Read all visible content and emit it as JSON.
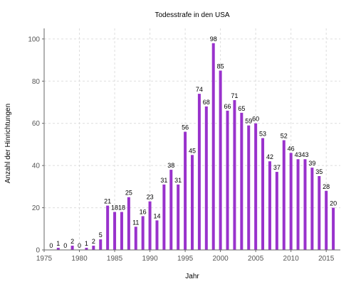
{
  "chart_data": {
    "type": "bar",
    "title": "Todesstrafe in den USA",
    "xlabel": "Jahr",
    "ylabel": "Anzahl der Hinrichtungen",
    "x": [
      1976,
      1977,
      1978,
      1979,
      1980,
      1981,
      1982,
      1983,
      1984,
      1985,
      1986,
      1987,
      1988,
      1989,
      1990,
      1991,
      1992,
      1993,
      1994,
      1995,
      1996,
      1997,
      1998,
      1999,
      2000,
      2001,
      2002,
      2003,
      2004,
      2005,
      2006,
      2007,
      2008,
      2009,
      2010,
      2011,
      2012,
      2013,
      2014,
      2015,
      2016
    ],
    "values": [
      0,
      1,
      0,
      2,
      0,
      1,
      2,
      5,
      21,
      18,
      18,
      25,
      11,
      16,
      23,
      14,
      31,
      38,
      31,
      56,
      45,
      74,
      68,
      98,
      85,
      66,
      71,
      65,
      59,
      60,
      53,
      42,
      37,
      52,
      46,
      43,
      43,
      39,
      35,
      28,
      20
    ],
    "xlim": [
      1975,
      2017
    ],
    "ylim": [
      0,
      105
    ],
    "xticks": [
      1975,
      1980,
      1985,
      1990,
      1995,
      2000,
      2005,
      2010,
      2015
    ],
    "yticks": [
      0,
      20,
      40,
      60,
      80,
      100
    ],
    "grid": true,
    "bar_color": "#9932CC"
  }
}
